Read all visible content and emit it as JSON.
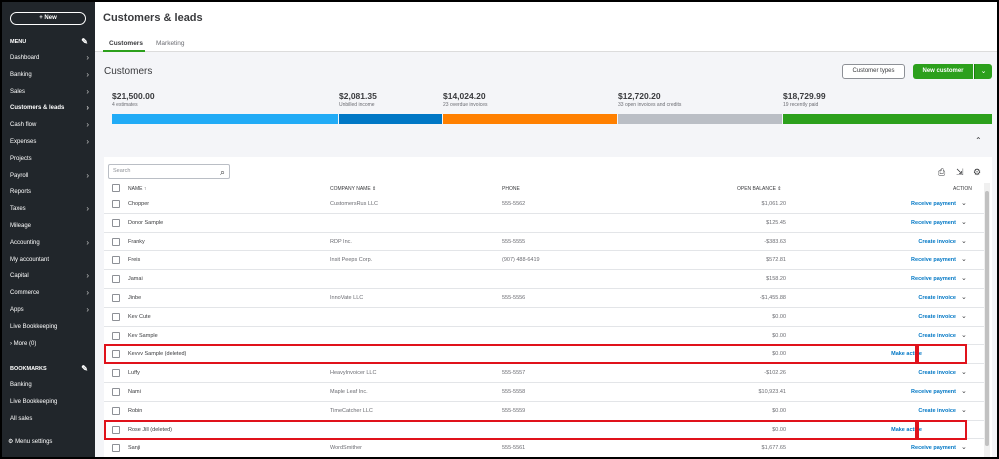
{
  "sidebar": {
    "new_label": "+ New",
    "menu_label": "MENU",
    "items": [
      {
        "label": "Dashboard",
        "chev": true
      },
      {
        "label": "Banking",
        "chev": true
      },
      {
        "label": "Sales",
        "chev": true
      },
      {
        "label": "Customers & leads",
        "chev": true,
        "active": true
      },
      {
        "label": "Cash flow",
        "chev": true
      },
      {
        "label": "Expenses",
        "chev": true
      },
      {
        "label": "Projects",
        "chev": false
      },
      {
        "label": "Payroll",
        "chev": true
      },
      {
        "label": "Reports",
        "chev": false
      },
      {
        "label": "Taxes",
        "chev": true
      },
      {
        "label": "Mileage",
        "chev": false
      },
      {
        "label": "Accounting",
        "chev": true
      },
      {
        "label": "My accountant",
        "chev": false
      },
      {
        "label": "Capital",
        "chev": true
      },
      {
        "label": "Commerce",
        "chev": true
      },
      {
        "label": "Apps",
        "chev": true
      },
      {
        "label": "Live Bookkeeping",
        "chev": false
      },
      {
        "label": "› More (0)",
        "chev": false
      }
    ],
    "bookmarks_label": "BOOKMARKS",
    "bookmarks": [
      "Banking",
      "Live Bookkeeping",
      "All sales"
    ],
    "settings_label": "Menu settings"
  },
  "header": {
    "title": "Customers & leads",
    "tabs": [
      "Customers",
      "Marketing"
    ]
  },
  "section": {
    "title": "Customers",
    "customer_types_label": "Customer types",
    "new_customer_label": "New customer"
  },
  "summary": [
    {
      "amount": "$21,500.00",
      "label": "4 estimates"
    },
    {
      "amount": "$2,081.35",
      "label": "Unbilled income"
    },
    {
      "amount": "$14,024.20",
      "label": "23 overdue invoices"
    },
    {
      "amount": "$12,720.20",
      "label": "33 open invoices and credits"
    },
    {
      "amount": "$18,729.99",
      "label": "19 recently paid"
    }
  ],
  "colors": {
    "bar_estimates": "#21abf6",
    "bar_unbilled": "#0077c5",
    "bar_overdue": "#ff8000",
    "bar_open": "#babec5",
    "bar_paid": "#2ca01c",
    "accent": "#2ca01c",
    "highlight": "#e0121b"
  },
  "table": {
    "search_placeholder": "Search",
    "columns": {
      "name": "NAME ↑",
      "company": "COMPANY NAME ⇕",
      "phone": "PHONE",
      "balance": "OPEN BALANCE ⇕",
      "action": "ACTION"
    },
    "rows": [
      {
        "name": "Chopper",
        "company": "CustomersRus LLC",
        "phone": "555-5562",
        "balance": "$1,061.20",
        "action": "Receive payment"
      },
      {
        "name": "Donor Sample",
        "company": "",
        "phone": "",
        "balance": "$125.45",
        "action": "Receive payment"
      },
      {
        "name": "Franky",
        "company": "RDP Inc.",
        "phone": "555-5555",
        "balance": "-$383.63",
        "action": "Create invoice"
      },
      {
        "name": "Freis",
        "company": "Insit Peeps Corp.",
        "phone": "(907) 488-6419",
        "balance": "$572.81",
        "action": "Receive payment"
      },
      {
        "name": "Jamai",
        "company": "",
        "phone": "",
        "balance": "$158.20",
        "action": "Receive payment"
      },
      {
        "name": "Jinbe",
        "company": "InnoVate LLC",
        "phone": "555-5556",
        "balance": "-$1,455.88",
        "action": "Create invoice"
      },
      {
        "name": "Kev Cute",
        "company": "",
        "phone": "",
        "balance": "$0.00",
        "action": "Create invoice"
      },
      {
        "name": "Kev Sample",
        "company": "",
        "phone": "",
        "balance": "$0.00",
        "action": "Create invoice"
      },
      {
        "name": "Kevvv Sample (deleted)",
        "company": "",
        "phone": "",
        "balance": "$0.00",
        "action": "Make active",
        "deleted": true
      },
      {
        "name": "Luffy",
        "company": "HeavyInvoicer LLC",
        "phone": "555-5557",
        "balance": "-$102.26",
        "action": "Create invoice"
      },
      {
        "name": "Nami",
        "company": "Maple Leaf Inc.",
        "phone": "555-5558",
        "balance": "$10,923.41",
        "action": "Receive payment"
      },
      {
        "name": "Robin",
        "company": "TimeCatcher LLC",
        "phone": "555-5559",
        "balance": "$0.00",
        "action": "Create invoice"
      },
      {
        "name": "Rose Jill (deleted)",
        "company": "",
        "phone": "",
        "balance": "$0.00",
        "action": "Make active",
        "deleted": true
      },
      {
        "name": "Sanji",
        "company": "WordSmither",
        "phone": "555-5561",
        "balance": "$1,677.65",
        "action": "Receive payment"
      }
    ]
  },
  "icons": [
    "search-icon",
    "print-icon",
    "export-icon",
    "gear-icon",
    "pencil-icon",
    "chevron-down-icon",
    "chevron-up-icon",
    "chevron-right-icon"
  ]
}
